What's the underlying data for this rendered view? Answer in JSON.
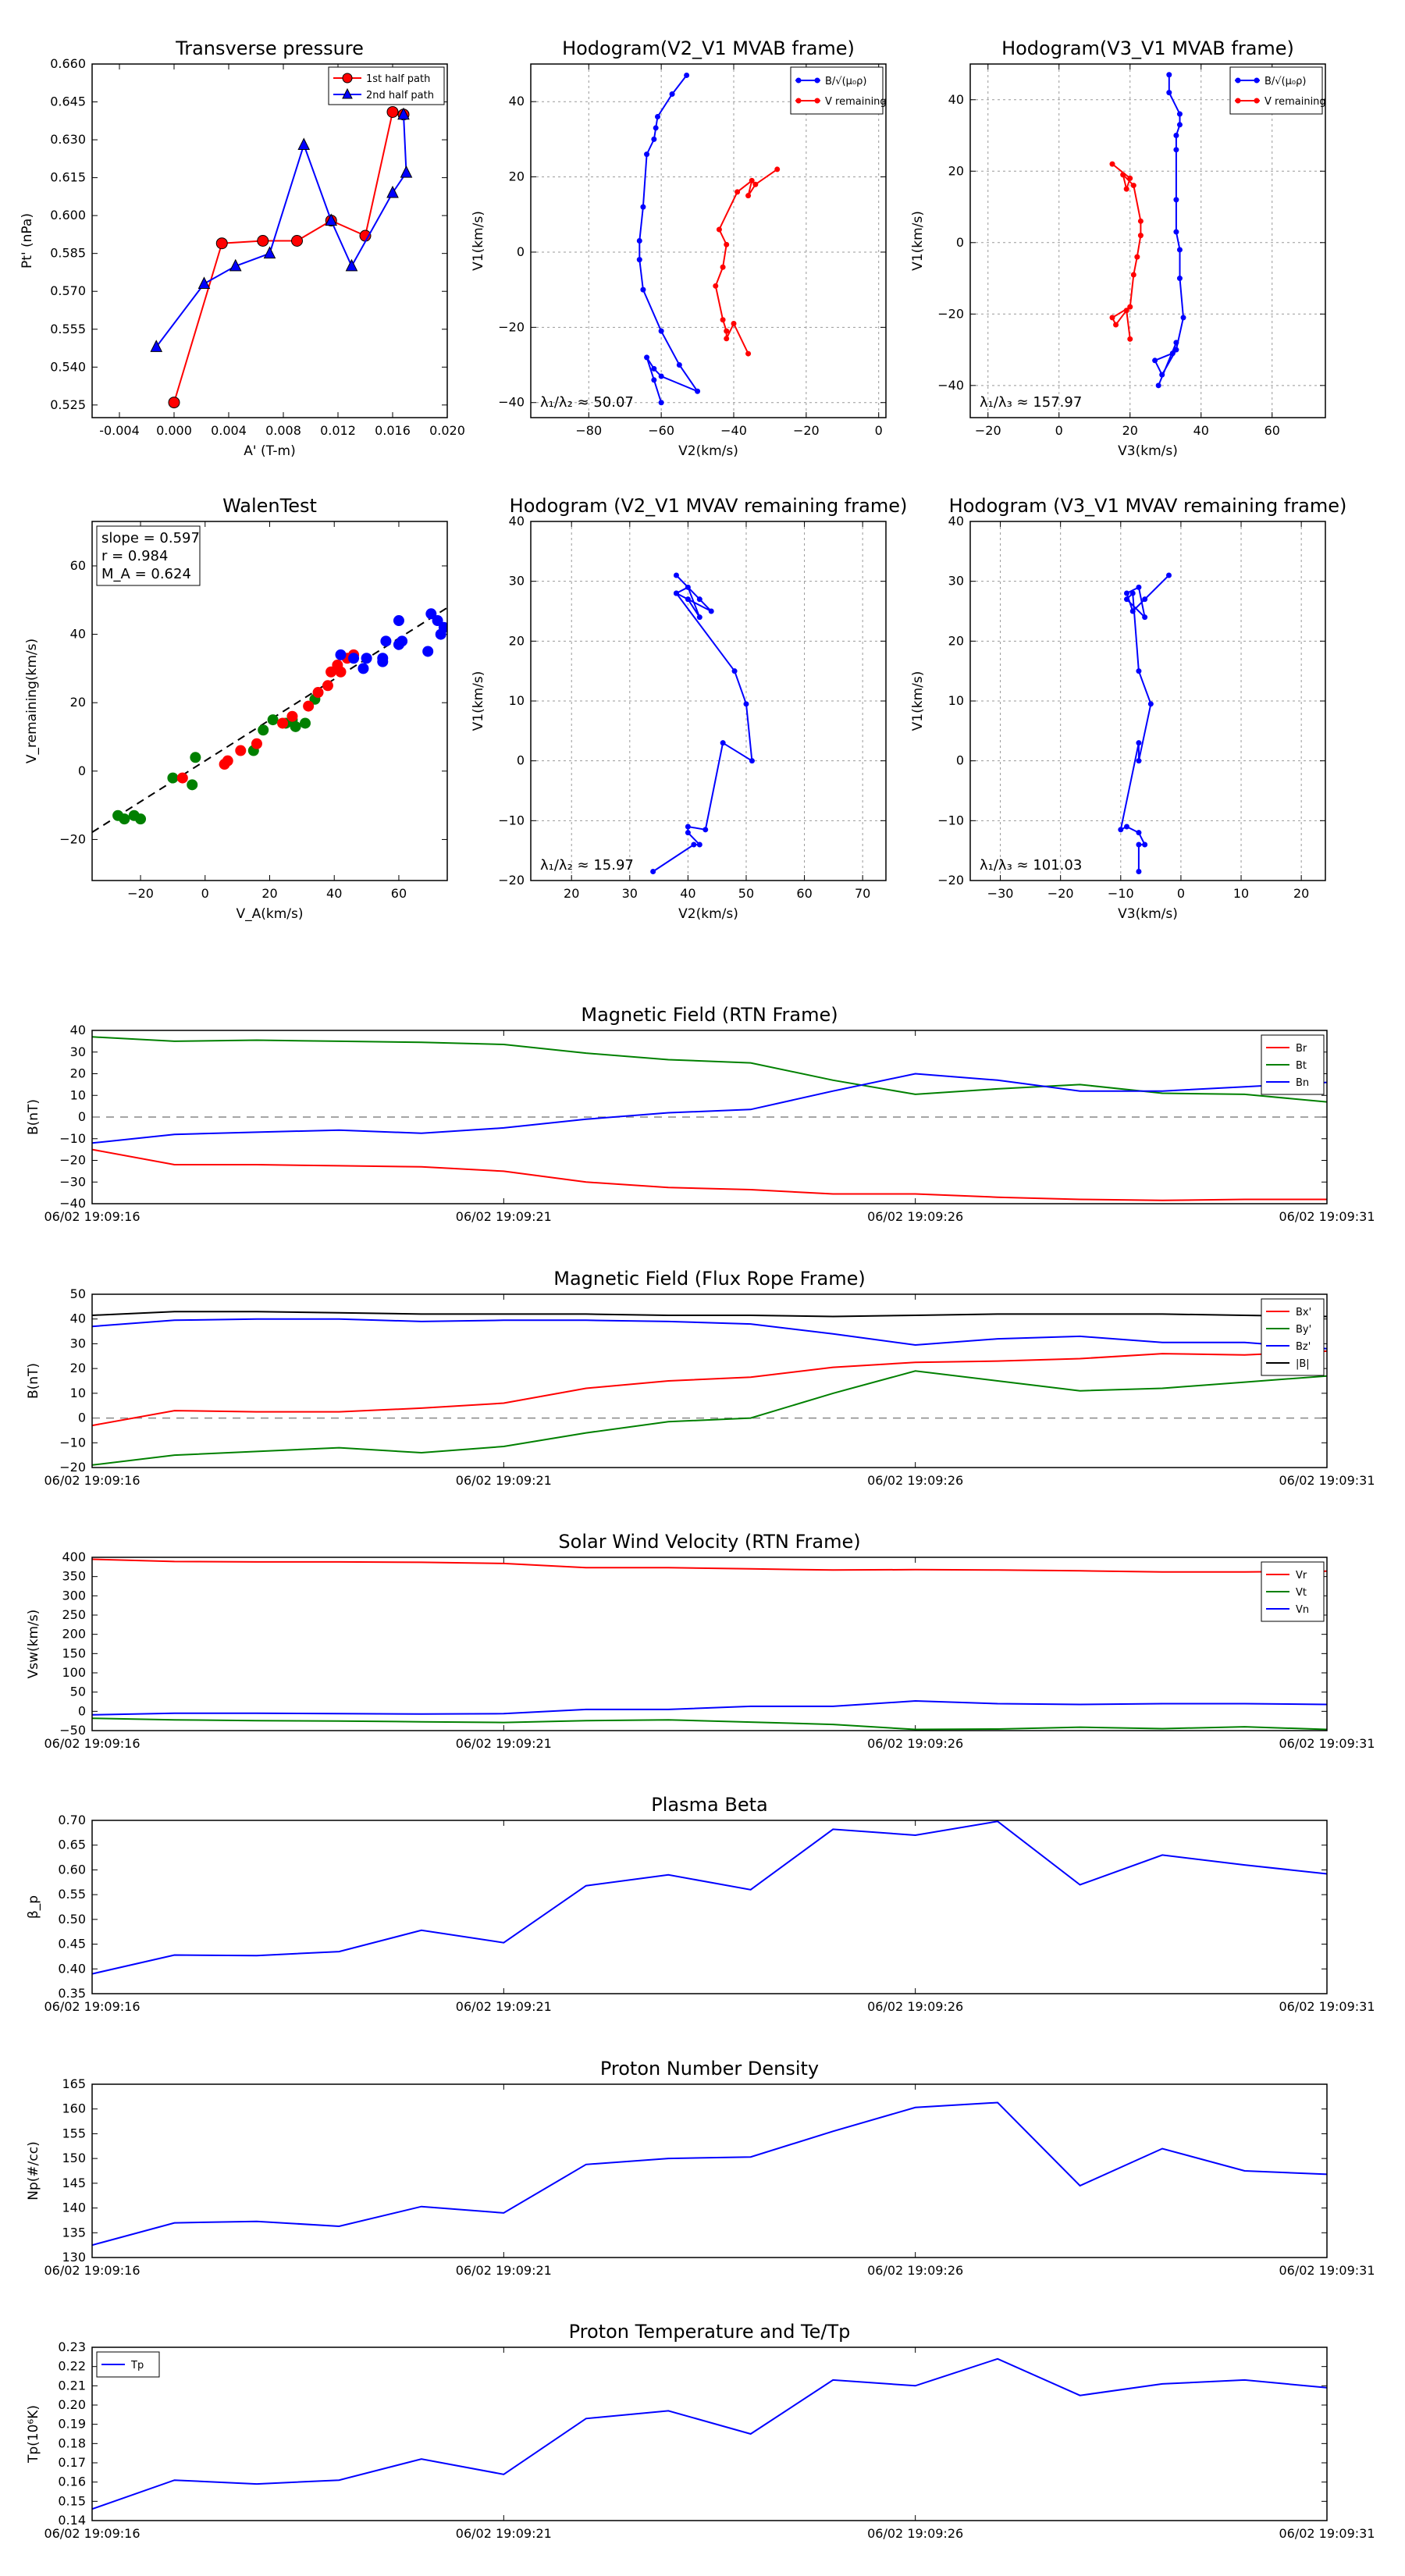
{
  "chart_data": [
    {
      "id": "tp",
      "type": "line",
      "title": "Transverse pressure",
      "xlabel": "A' (T-m)",
      "ylabel": "Pt' (nPa)",
      "xlim": [
        -0.006,
        0.02
      ],
      "ylim": [
        0.52,
        0.66
      ],
      "xticks": [
        "-0.004",
        "0.000",
        "0.004",
        "0.008",
        "0.012",
        "0.016",
        "0.020"
      ],
      "yticks": [
        "0.525",
        "0.540",
        "0.555",
        "0.570",
        "0.585",
        "0.600",
        "0.615",
        "0.630",
        "0.645",
        "0.660"
      ],
      "legend": [
        "1st half path",
        "2nd half path"
      ],
      "series": [
        {
          "name": "1st half path",
          "color": "#ff0000",
          "marker": "circle",
          "x": [
            0.0,
            0.0035,
            0.0065,
            0.009,
            0.0115,
            0.014,
            0.016,
            0.0168
          ],
          "y": [
            0.526,
            0.589,
            0.59,
            0.59,
            0.598,
            0.592,
            0.641,
            0.64
          ]
        },
        {
          "name": "2nd half path",
          "color": "#0000ff",
          "marker": "triangle",
          "x": [
            0.0168,
            0.017,
            0.016,
            0.013,
            0.0115,
            0.0095,
            0.007,
            0.0045,
            0.0022,
            -0.0013
          ],
          "y": [
            0.64,
            0.617,
            0.609,
            0.58,
            0.598,
            0.628,
            0.585,
            0.58,
            0.573,
            0.548
          ]
        }
      ]
    },
    {
      "id": "h1",
      "type": "line",
      "title": "Hodogram(V2_V1 MVAB frame)",
      "xlabel": "V2(km/s)",
      "ylabel": "V1(km/s)",
      "xlim": [
        -96,
        2
      ],
      "ylim": [
        -44,
        50
      ],
      "xticks": [
        "−80",
        "−60",
        "−40",
        "−20",
        "0"
      ],
      "yticks": [
        "−40",
        "−20",
        "0",
        "20",
        "40"
      ],
      "legend": [
        "B/√(μ₀ρ)",
        "V remaining"
      ],
      "lambda_text": "λ₁/λ₂ ≈ 50.07",
      "series": [
        {
          "name": "B",
          "color": "#0000ff",
          "x": [
            -53,
            -57,
            -61,
            -61.5,
            -62,
            -64,
            -65,
            -66,
            -66,
            -65,
            -60,
            -55,
            -50,
            -60,
            -62,
            -64,
            -62,
            -60
          ],
          "y": [
            47,
            42,
            36,
            33,
            30,
            26,
            12,
            3,
            -2,
            -10,
            -21,
            -30,
            -37,
            -33,
            -31,
            -28,
            -34,
            -40
          ]
        },
        {
          "name": "V",
          "color": "#ff0000",
          "x": [
            -28,
            -34,
            -36,
            -35,
            -39,
            -44,
            -42,
            -43,
            -45,
            -43,
            -42,
            -42,
            -40,
            -36
          ],
          "y": [
            22,
            18,
            15,
            19,
            16,
            6,
            2,
            -4,
            -9,
            -18,
            -21,
            -23,
            -19,
            -27
          ]
        }
      ]
    },
    {
      "id": "h2",
      "type": "line",
      "title": "Hodogram(V3_V1 MVAB frame)",
      "xlabel": "V3(km/s)",
      "ylabel": "V1(km/s)",
      "xlim": [
        -25,
        75
      ],
      "ylim": [
        -49,
        50
      ],
      "xticks": [
        "−20",
        "0",
        "20",
        "40",
        "60"
      ],
      "yticks": [
        "−40",
        "−20",
        "0",
        "20",
        "40"
      ],
      "legend": [
        "B/√(μ₀ρ)",
        "V remaining"
      ],
      "lambda_text": "λ₁/λ₃ ≈ 157.97",
      "series": [
        {
          "name": "B",
          "color": "#0000ff",
          "x": [
            31,
            31,
            34,
            34,
            33,
            33,
            33,
            33,
            34,
            34,
            35,
            33,
            29,
            27,
            32,
            33,
            28
          ],
          "y": [
            47,
            42,
            36,
            33,
            30,
            26,
            12,
            3,
            -2,
            -10,
            -21,
            -30,
            -37,
            -33,
            -31,
            -28,
            -40
          ]
        },
        {
          "name": "V",
          "color": "#ff0000",
          "x": [
            15,
            20,
            19,
            18,
            21,
            23,
            23,
            22,
            21,
            20,
            15,
            16,
            19,
            20
          ],
          "y": [
            22,
            18,
            15,
            19,
            16,
            6,
            2,
            -4,
            -9,
            -18,
            -21,
            -23,
            -19,
            -27
          ]
        }
      ]
    },
    {
      "id": "walen",
      "type": "scatter",
      "title": "WalenTest",
      "xlabel": "V_A(km/s)",
      "ylabel": "V_remaining(km/s)",
      "xlim": [
        -35,
        75
      ],
      "ylim": [
        -32,
        73
      ],
      "xticks": [
        "−20",
        "0",
        "20",
        "40",
        "60"
      ],
      "yticks": [
        "−20",
        "0",
        "20",
        "40",
        "60"
      ],
      "fit": {
        "slope": 0.597,
        "intercept": 3.0
      },
      "stats": [
        "slope = 0.597",
        "r = 0.984",
        "M_A = 0.624"
      ],
      "series": [
        {
          "name": "green",
          "color": "#008000",
          "x": [
            -27,
            -25,
            -22,
            -20,
            -10,
            -4,
            -3,
            15,
            18,
            21,
            25,
            27,
            28,
            31,
            34
          ],
          "y": [
            -13,
            -14,
            -13,
            -14,
            -2,
            -4,
            4,
            6,
            12,
            15,
            14,
            15,
            13,
            14,
            21
          ]
        },
        {
          "name": "red",
          "color": "#ff0000",
          "x": [
            -7,
            6,
            7,
            11,
            16,
            24,
            27,
            32,
            35,
            38,
            39,
            41,
            42,
            44,
            46
          ],
          "y": [
            -2,
            2,
            3,
            6,
            8,
            14,
            16,
            19,
            23,
            25,
            29,
            31,
            29,
            33,
            34
          ]
        },
        {
          "name": "blue",
          "color": "#0000ff",
          "x": [
            42,
            46,
            49,
            50,
            55,
            55,
            56,
            60,
            60,
            61,
            69,
            70,
            72,
            73,
            74
          ],
          "y": [
            34,
            33,
            30,
            33,
            32,
            33,
            38,
            37,
            44,
            38,
            35,
            46,
            44,
            40,
            42
          ]
        }
      ]
    },
    {
      "id": "h3",
      "type": "line",
      "title": "Hodogram (V2_V1 MVAV remaining frame)",
      "xlabel": "V2(km/s)",
      "ylabel": "V1(km/s)",
      "xlim": [
        13,
        74
      ],
      "ylim": [
        -20,
        40
      ],
      "xticks": [
        "20",
        "30",
        "40",
        "50",
        "60",
        "70"
      ],
      "yticks": [
        "−20",
        "−10",
        "0",
        "10",
        "20",
        "30",
        "40"
      ],
      "lambda_text": "λ₁/λ₂ ≈ 15.97",
      "series": [
        {
          "name": "V",
          "color": "#0000ff",
          "x": [
            38,
            42,
            44,
            38,
            40,
            42,
            40,
            38,
            48,
            50,
            51,
            46,
            43,
            40,
            40,
            42,
            41,
            34
          ],
          "y": [
            31,
            27,
            25,
            28,
            29,
            24,
            27,
            28,
            15,
            9.5,
            0,
            3,
            -11.5,
            -11,
            -12,
            -14,
            -14,
            -18.5
          ]
        }
      ]
    },
    {
      "id": "h4",
      "type": "line",
      "title": "Hodogram (V3_V1 MVAV remaining frame)",
      "xlabel": "V3(km/s)",
      "ylabel": "V1(km/s)",
      "xlim": [
        -35,
        24
      ],
      "ylim": [
        -20,
        40
      ],
      "xticks": [
        "−30",
        "−20",
        "−10",
        "0",
        "10",
        "20"
      ],
      "yticks": [
        "−20",
        "−10",
        "0",
        "10",
        "20",
        "30",
        "40"
      ],
      "lambda_text": "λ₁/λ₃ ≈ 101.03",
      "series": [
        {
          "name": "V",
          "color": "#0000ff",
          "x": [
            -2,
            -6,
            -8,
            -9,
            -7,
            -6,
            -9,
            -8,
            -7,
            -5,
            -7,
            -7,
            -10,
            -9,
            -7,
            -6,
            -7,
            -7
          ],
          "y": [
            31,
            27,
            25,
            28,
            29,
            24,
            27,
            28,
            15,
            9.5,
            0,
            3,
            -11.5,
            -11,
            -12,
            -14,
            -14,
            -18.5
          ]
        }
      ]
    },
    {
      "id": "mag_rtn",
      "type": "line",
      "title": "Magnetic Field (RTN Frame)",
      "ylabel": "B(nT)",
      "ylim": [
        -40,
        40
      ],
      "yticks": [
        "−40",
        "−30",
        "−20",
        "−10",
        "0",
        "10",
        "20",
        "30",
        "40"
      ],
      "zero": true,
      "legend_pos": "top-right",
      "series": [
        {
          "name": "Br",
          "color": "#ff0000",
          "values": [
            -15,
            -22,
            -22,
            -22.5,
            -23,
            -25,
            -30,
            -32.5,
            -33.5,
            -35.5,
            -35.5,
            -37,
            -38,
            -38.5,
            -38,
            -38
          ]
        },
        {
          "name": "Bt",
          "color": "#008000",
          "values": [
            37,
            35,
            35.5,
            35,
            34.5,
            33.5,
            29.5,
            26.5,
            25,
            17,
            10.5,
            13,
            15,
            11,
            10.5,
            7
          ]
        },
        {
          "name": "Bn",
          "color": "#0000ff",
          "values": [
            -12,
            -8,
            -7,
            -6,
            -7.5,
            -5,
            -1,
            2,
            3.5,
            12,
            20,
            17,
            12,
            12,
            14,
            16
          ]
        }
      ]
    },
    {
      "id": "mag_fr",
      "type": "line",
      "title": "Magnetic Field (Flux Rope Frame)",
      "ylabel": "B(nT)",
      "ylim": [
        -20,
        50
      ],
      "yticks": [
        "−20",
        "−10",
        "0",
        "10",
        "20",
        "30",
        "40",
        "50"
      ],
      "zero": true,
      "legend_pos": "top-right",
      "series": [
        {
          "name": "Bx'",
          "color": "#ff0000",
          "values": [
            -3,
            3,
            2.5,
            2.5,
            4,
            6,
            12,
            15,
            16.5,
            20.5,
            22.5,
            23,
            24,
            26,
            25.5,
            27
          ]
        },
        {
          "name": "By'",
          "color": "#008000",
          "values": [
            -19,
            -15,
            -13.5,
            -12,
            -14,
            -11.5,
            -6,
            -1.5,
            0,
            10,
            19,
            15,
            11,
            12,
            14.5,
            17
          ]
        },
        {
          "name": "Bz'",
          "color": "#0000ff",
          "values": [
            37,
            39.5,
            40,
            40,
            39,
            39.5,
            39.5,
            39,
            38,
            34,
            29.5,
            32,
            33,
            30.5,
            30.5,
            28
          ]
        },
        {
          "name": "|B|",
          "color": "#000000",
          "values": [
            41.5,
            43,
            43,
            42.5,
            42,
            42,
            42,
            41.5,
            41.5,
            41,
            41.5,
            42,
            42,
            42,
            41.5,
            41
          ]
        }
      ]
    },
    {
      "id": "vel",
      "type": "line",
      "title": "Solar Wind Velocity (RTN Frame)",
      "ylabel": "Vsw(km/s)",
      "ylim": [
        -50,
        400
      ],
      "yticks": [
        "−50",
        "0",
        "50",
        "100",
        "150",
        "200",
        "250",
        "300",
        "350",
        "400"
      ],
      "legend_pos": "top-right",
      "series": [
        {
          "name": "Vr",
          "color": "#ff0000",
          "values": [
            395,
            389,
            388,
            388,
            387,
            384,
            373,
            373,
            370,
            367,
            368,
            367,
            365,
            362,
            362,
            364
          ]
        },
        {
          "name": "Vt",
          "color": "#008000",
          "values": [
            -18,
            -22,
            -24,
            -25,
            -27,
            -29,
            -24,
            -22,
            -28,
            -34,
            -47,
            -46,
            -41,
            -45,
            -40,
            -47
          ]
        },
        {
          "name": "Vn",
          "color": "#0000ff",
          "values": [
            -9,
            -5,
            -5,
            -6,
            -7,
            -6,
            5,
            5,
            13,
            13,
            27,
            20,
            18,
            20,
            20,
            18
          ]
        }
      ]
    },
    {
      "id": "beta",
      "type": "line",
      "title": "Plasma Beta",
      "ylabel": "β_p",
      "ylim": [
        0.35,
        0.7
      ],
      "yticks": [
        "0.35",
        "0.40",
        "0.45",
        "0.50",
        "0.55",
        "0.60",
        "0.65",
        "0.70"
      ],
      "series": [
        {
          "name": "beta",
          "color": "#0000ff",
          "values": [
            0.39,
            0.428,
            0.427,
            0.435,
            0.478,
            0.453,
            0.568,
            0.59,
            0.56,
            0.682,
            0.67,
            0.698,
            0.57,
            0.63,
            0.61,
            0.592
          ]
        }
      ]
    },
    {
      "id": "np",
      "type": "line",
      "title": "Proton Number Density",
      "ylabel": "Np(#/cc)",
      "ylim": [
        130,
        165
      ],
      "yticks": [
        "130",
        "135",
        "140",
        "145",
        "150",
        "155",
        "160",
        "165"
      ],
      "series": [
        {
          "name": "Np",
          "color": "#0000ff",
          "values": [
            132.5,
            137,
            137.3,
            136.3,
            140.3,
            139,
            148.8,
            150,
            150.3,
            155.5,
            160.3,
            161.3,
            144.5,
            152,
            147.5,
            146.8
          ]
        }
      ]
    },
    {
      "id": "tp_temp",
      "type": "line",
      "title": "Proton Temperature and Te/Tp",
      "ylabel": "Tp(10⁶K)",
      "ylim": [
        0.14,
        0.23
      ],
      "yticks": [
        "0.14",
        "0.15",
        "0.16",
        "0.17",
        "0.18",
        "0.19",
        "0.20",
        "0.21",
        "0.22",
        "0.23"
      ],
      "legend": [
        "Tp"
      ],
      "legend_pos": "top-left",
      "series": [
        {
          "name": "Tp",
          "color": "#0000ff",
          "values": [
            0.146,
            0.161,
            0.159,
            0.161,
            0.172,
            0.164,
            0.193,
            0.197,
            0.185,
            0.213,
            0.21,
            0.224,
            0.205,
            0.211,
            0.213,
            0.209
          ]
        }
      ]
    }
  ],
  "time_ticks": [
    "06/02 19:09:16",
    "06/02 19:09:21",
    "06/02 19:09:26",
    "06/02 19:09:31"
  ]
}
